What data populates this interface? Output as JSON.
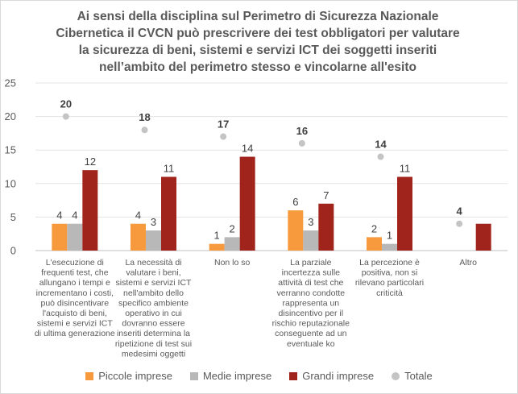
{
  "chart_data": {
    "type": "bar",
    "title_lines": [
      "Ai sensi della disciplina sul Perimetro di Sicurezza Nazionale",
      "Cibernetica il CVCN può prescrivere dei test obbligatori per valutare",
      "la sicurezza di beni, sistemi e servizi ICT dei soggetti inseriti",
      "nell’ambito del perimetro stesso e vincolarne all'esito"
    ],
    "categories": [
      [
        "L'esecuzione di",
        "frequenti test, che",
        "allungano i tempi e",
        "incrementano i costi,",
        "può disincentivare",
        "l'acquisto di beni,",
        "sistemi e servizi ICT",
        "di ultima generazione"
      ],
      [
        "La necessità di",
        "valutare i beni,",
        "sistemi e servizi ICT",
        "nell'ambito dello",
        "specifico ambiente",
        "operativo in cui",
        "dovranno essere",
        "inseriti determina la",
        "ripetizione di test sui",
        "medesimi oggetti"
      ],
      [
        "Non lo so"
      ],
      [
        "La parziale",
        "incertezza sulle",
        "attività di test che",
        "verranno condotte",
        "rappresenta un",
        "disincentivo per il",
        "rischio reputazionale",
        "conseguente ad un",
        "eventuale ko"
      ],
      [
        "La percezione è",
        "positiva, non si",
        "rilevano particolari",
        "criticità"
      ],
      [
        "Altro"
      ]
    ],
    "series": [
      {
        "name": "Piccole imprese",
        "color": "#f79a3e",
        "values": [
          4,
          4,
          1,
          6,
          2,
          0
        ],
        "labels": [
          "4",
          "4",
          "1",
          "6",
          "2",
          ""
        ]
      },
      {
        "name": "Medie imprese",
        "color": "#b8b8b8",
        "values": [
          4,
          3,
          2,
          3,
          1,
          0
        ],
        "labels": [
          "4",
          "3",
          "2",
          "3",
          "1",
          ""
        ]
      },
      {
        "name": "Grandi imprese",
        "color": "#a0241c",
        "values": [
          12,
          11,
          14,
          7,
          11,
          4
        ],
        "labels": [
          "12",
          "11",
          "14",
          "7",
          "11",
          ""
        ]
      }
    ],
    "totals": {
      "name": "Totale",
      "color": "#c4c4c4",
      "values": [
        20,
        18,
        17,
        16,
        14,
        4
      ],
      "labels": [
        "20",
        "18",
        "17",
        "16",
        "14",
        "4"
      ]
    },
    "y_ticks": [
      "0",
      "5",
      "10",
      "15",
      "20",
      "25"
    ],
    "ylim": [
      0,
      25
    ],
    "grid": true,
    "legend_position": "bottom"
  }
}
